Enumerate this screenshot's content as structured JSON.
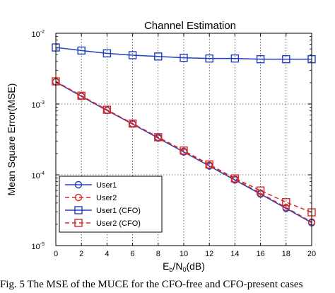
{
  "caption": "Fig. 5  The MSE of the MUCE for the CFO-free and CFO-present cases",
  "chart_data": {
    "type": "line",
    "title": "Channel Estimation",
    "xlabel_main": "E",
    "xlabel_sub1": "b",
    "xlabel_mid": "/N",
    "xlabel_sub2": "0",
    "xlabel_tail": "(dB)",
    "ylabel": "Mean Square Error(MSE)",
    "xlim": [
      0,
      20
    ],
    "ylim": [
      1e-05,
      0.01
    ],
    "yscale": "log",
    "grid": true,
    "legend_position": "lower-left",
    "x": [
      0,
      2,
      4,
      6,
      8,
      10,
      12,
      14,
      16,
      18,
      20
    ],
    "x_ticks": [
      "0",
      "2",
      "4",
      "6",
      "8",
      "10",
      "12",
      "14",
      "16",
      "18",
      "20"
    ],
    "y_ticks": [
      {
        "value": 1e-05,
        "base": "10",
        "exp": "-5"
      },
      {
        "value": 0.0001,
        "base": "10",
        "exp": "-4"
      },
      {
        "value": 0.001,
        "base": "10",
        "exp": "-3"
      },
      {
        "value": 0.01,
        "base": "10",
        "exp": "-2"
      }
    ],
    "series": [
      {
        "name": "User1",
        "color": "#1f3fbf",
        "dash": "solid",
        "marker": "circle",
        "values": [
          0.00205,
          0.00128,
          0.00081,
          0.00052,
          0.00033,
          0.00021,
          0.000133,
          8.45e-05,
          5.35e-05,
          3.35e-05,
          2.1e-05
        ]
      },
      {
        "name": "User2",
        "color": "#d42a2a",
        "dash": "dashed",
        "marker": "circle",
        "values": [
          0.00207,
          0.0013,
          0.00082,
          0.00053,
          0.00034,
          0.000215,
          0.000137,
          8.7e-05,
          5.5e-05,
          3.45e-05,
          2.15e-05
        ]
      },
      {
        "name": "User1 (CFO)",
        "color": "#1f3fbf",
        "dash": "solid",
        "marker": "square",
        "values": [
          0.0063,
          0.0057,
          0.0052,
          0.0049,
          0.0047,
          0.0045,
          0.0044,
          0.0044,
          0.0043,
          0.0043,
          0.0043
        ]
      },
      {
        "name": "User2 (CFO)",
        "color": "#d42a2a",
        "dash": "dashed",
        "marker": "square",
        "values": [
          0.00209,
          0.00131,
          0.00083,
          0.00053,
          0.00034,
          0.00022,
          0.00014,
          8.9e-05,
          6e-05,
          4.1e-05,
          2.95e-05
        ]
      }
    ]
  }
}
